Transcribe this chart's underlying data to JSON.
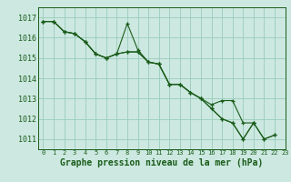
{
  "background_color": "#cce8e0",
  "grid_color": "#99ccbb",
  "line_color": "#1a5c1a",
  "marker_color": "#1a5c1a",
  "xlabel": "Graphe pression niveau de la mer (hPa)",
  "xlabel_fontsize": 7,
  "xlim": [
    -0.5,
    23
  ],
  "ylim": [
    1010.5,
    1017.5
  ],
  "yticks": [
    1011,
    1012,
    1013,
    1014,
    1015,
    1016,
    1017
  ],
  "xticks": [
    0,
    1,
    2,
    3,
    4,
    5,
    6,
    7,
    8,
    9,
    10,
    11,
    12,
    13,
    14,
    15,
    16,
    17,
    18,
    19,
    20,
    21,
    22,
    23
  ],
  "series": [
    [
      1016.8,
      1016.8,
      1016.3,
      1016.2,
      1015.8,
      1015.2,
      1015.0,
      1015.2,
      1016.7,
      1015.4,
      1014.8,
      1014.7,
      1013.7,
      1013.7,
      1013.3,
      1013.0,
      1012.5,
      1012.0,
      1011.8,
      1011.0,
      1011.8,
      1011.0,
      1011.2,
      null
    ],
    [
      1016.8,
      1016.8,
      1016.3,
      1016.2,
      1015.8,
      1015.2,
      1015.0,
      1015.2,
      1015.3,
      1015.3,
      1014.8,
      1014.7,
      1013.7,
      1013.7,
      1013.3,
      1013.0,
      1012.5,
      1012.0,
      1011.8,
      1011.0,
      1011.8,
      1011.0,
      1011.2,
      null
    ],
    [
      1016.8,
      1016.8,
      1016.3,
      1016.2,
      1015.8,
      1015.2,
      1015.0,
      1015.2,
      1015.3,
      1015.3,
      1014.8,
      1014.7,
      1013.7,
      1013.7,
      1013.3,
      1013.0,
      1012.7,
      1012.9,
      1012.9,
      1011.8,
      1011.8,
      null,
      null,
      null
    ]
  ]
}
